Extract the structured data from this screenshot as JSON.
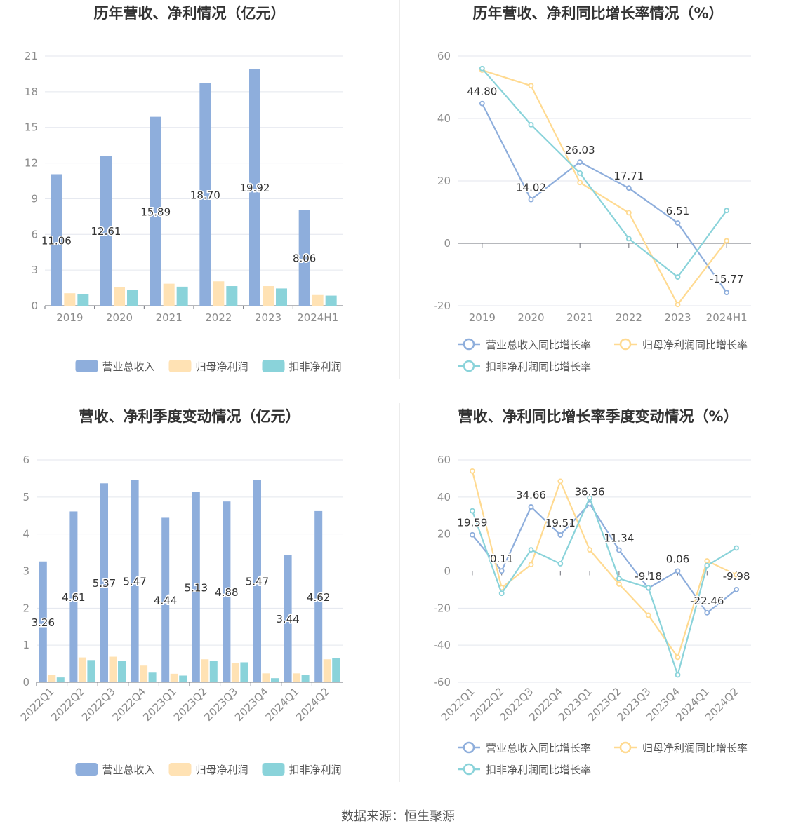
{
  "source": "数据来源：恒生聚源",
  "colors": {
    "revenue": "#8EAEDC",
    "net_profit": "#FFE2B4",
    "deducted_profit": "#8AD3DA",
    "revenue_line": "#8EAEDC",
    "net_profit_line": "#FFDA91",
    "deducted_profit_line": "#8AD3DA",
    "axis_text": "#8c8c8c",
    "grid": "#e3e6ee",
    "title": "#333333"
  },
  "chart_data": [
    {
      "type": "bar",
      "title": "历年营收、净利情况（亿元）",
      "categories": [
        "2019",
        "2020",
        "2021",
        "2022",
        "2023",
        "2024H1"
      ],
      "yticks": [
        "0",
        "3",
        "6",
        "9",
        "12",
        "15",
        "18",
        "21"
      ],
      "ylim": [
        0,
        21
      ],
      "grid": true,
      "legend_position": "bottom",
      "series": [
        {
          "name": "营业总收入",
          "values": [
            11.06,
            12.61,
            15.89,
            18.7,
            19.92,
            8.06
          ],
          "labels": [
            "11.06",
            "12.61",
            "15.89",
            "18.70",
            "19.92",
            "8.06"
          ]
        },
        {
          "name": "归母净利润",
          "values": [
            1.05,
            1.55,
            1.85,
            2.05,
            1.65,
            0.9
          ]
        },
        {
          "name": "扣非净利润",
          "values": [
            0.95,
            1.3,
            1.6,
            1.65,
            1.45,
            0.85
          ]
        }
      ]
    },
    {
      "type": "line",
      "title": "历年营收、净利同比增长率情况（%）",
      "categories": [
        "2019",
        "2020",
        "2021",
        "2022",
        "2023",
        "2024H1"
      ],
      "yticks": [
        "-20",
        "0",
        "20",
        "40",
        "60"
      ],
      "ylim": [
        -20,
        60
      ],
      "grid": true,
      "legend_position": "bottom",
      "series": [
        {
          "name": "营业总收入同比增长率",
          "values": [
            44.8,
            14.02,
            26.03,
            17.71,
            6.51,
            -15.77
          ],
          "labels": [
            "44.80",
            "14.02",
            "26.03",
            "17.71",
            "6.51",
            "-15.77"
          ]
        },
        {
          "name": "归母净利润同比增长率",
          "values": [
            55.5,
            50.5,
            19.5,
            9.8,
            -19.6,
            0.8
          ]
        },
        {
          "name": "扣非净利润同比增长率",
          "values": [
            56.0,
            38.0,
            22.5,
            1.5,
            -10.8,
            10.5
          ]
        }
      ]
    },
    {
      "type": "bar",
      "title": "营收、净利季度变动情况（亿元）",
      "categories": [
        "2022Q1",
        "2022Q2",
        "2022Q3",
        "2022Q4",
        "2023Q1",
        "2023Q2",
        "2023Q3",
        "2023Q4",
        "2024Q1",
        "2024Q2"
      ],
      "yticks": [
        "0",
        "1",
        "2",
        "3",
        "4",
        "5",
        "6"
      ],
      "ylim": [
        0,
        6
      ],
      "grid": true,
      "legend_position": "bottom",
      "series": [
        {
          "name": "营业总收入",
          "values": [
            3.26,
            4.61,
            5.37,
            5.47,
            4.44,
            5.13,
            4.88,
            5.47,
            3.44,
            4.62
          ],
          "labels": [
            "3.26",
            "4.61",
            "5.37",
            "5.47",
            "4.44",
            "5.13",
            "4.88",
            "5.47",
            "3.44",
            "4.62"
          ]
        },
        {
          "name": "归母净利润",
          "values": [
            0.2,
            0.67,
            0.69,
            0.45,
            0.23,
            0.62,
            0.52,
            0.24,
            0.24,
            0.62
          ]
        },
        {
          "name": "扣非净利润",
          "values": [
            0.13,
            0.6,
            0.58,
            0.26,
            0.18,
            0.58,
            0.54,
            0.11,
            0.2,
            0.65
          ]
        }
      ]
    },
    {
      "type": "line",
      "title": "营收、净利同比增长率季度变动情况（%）",
      "categories": [
        "2022Q1",
        "2022Q2",
        "2022Q3",
        "2022Q4",
        "2023Q1",
        "2023Q2",
        "2023Q3",
        "2023Q4",
        "2024Q1",
        "2024Q2"
      ],
      "yticks": [
        "-60",
        "-40",
        "-20",
        "0",
        "20",
        "40",
        "60"
      ],
      "ylim": [
        -60,
        60
      ],
      "grid": true,
      "legend_position": "bottom",
      "series": [
        {
          "name": "营业总收入同比增长率",
          "values": [
            19.59,
            0.11,
            34.66,
            19.51,
            36.36,
            11.34,
            -9.18,
            0.06,
            -22.46,
            -9.98
          ],
          "labels": [
            "19.59",
            "0.11",
            "34.66",
            "19.51",
            "36.36",
            "11.34",
            "-9.18",
            "0.06",
            "-22.46",
            "-9.98"
          ]
        },
        {
          "name": "归母净利润同比增长率",
          "values": [
            54.0,
            -9.0,
            3.5,
            48.5,
            11.5,
            -7.0,
            -23.8,
            -46.5,
            5.5,
            -2.0
          ]
        },
        {
          "name": "扣非净利润同比增长率",
          "values": [
            32.5,
            -12.0,
            11.5,
            4.0,
            39.5,
            -4.0,
            -9.0,
            -56.0,
            3.0,
            12.5
          ]
        }
      ]
    }
  ]
}
